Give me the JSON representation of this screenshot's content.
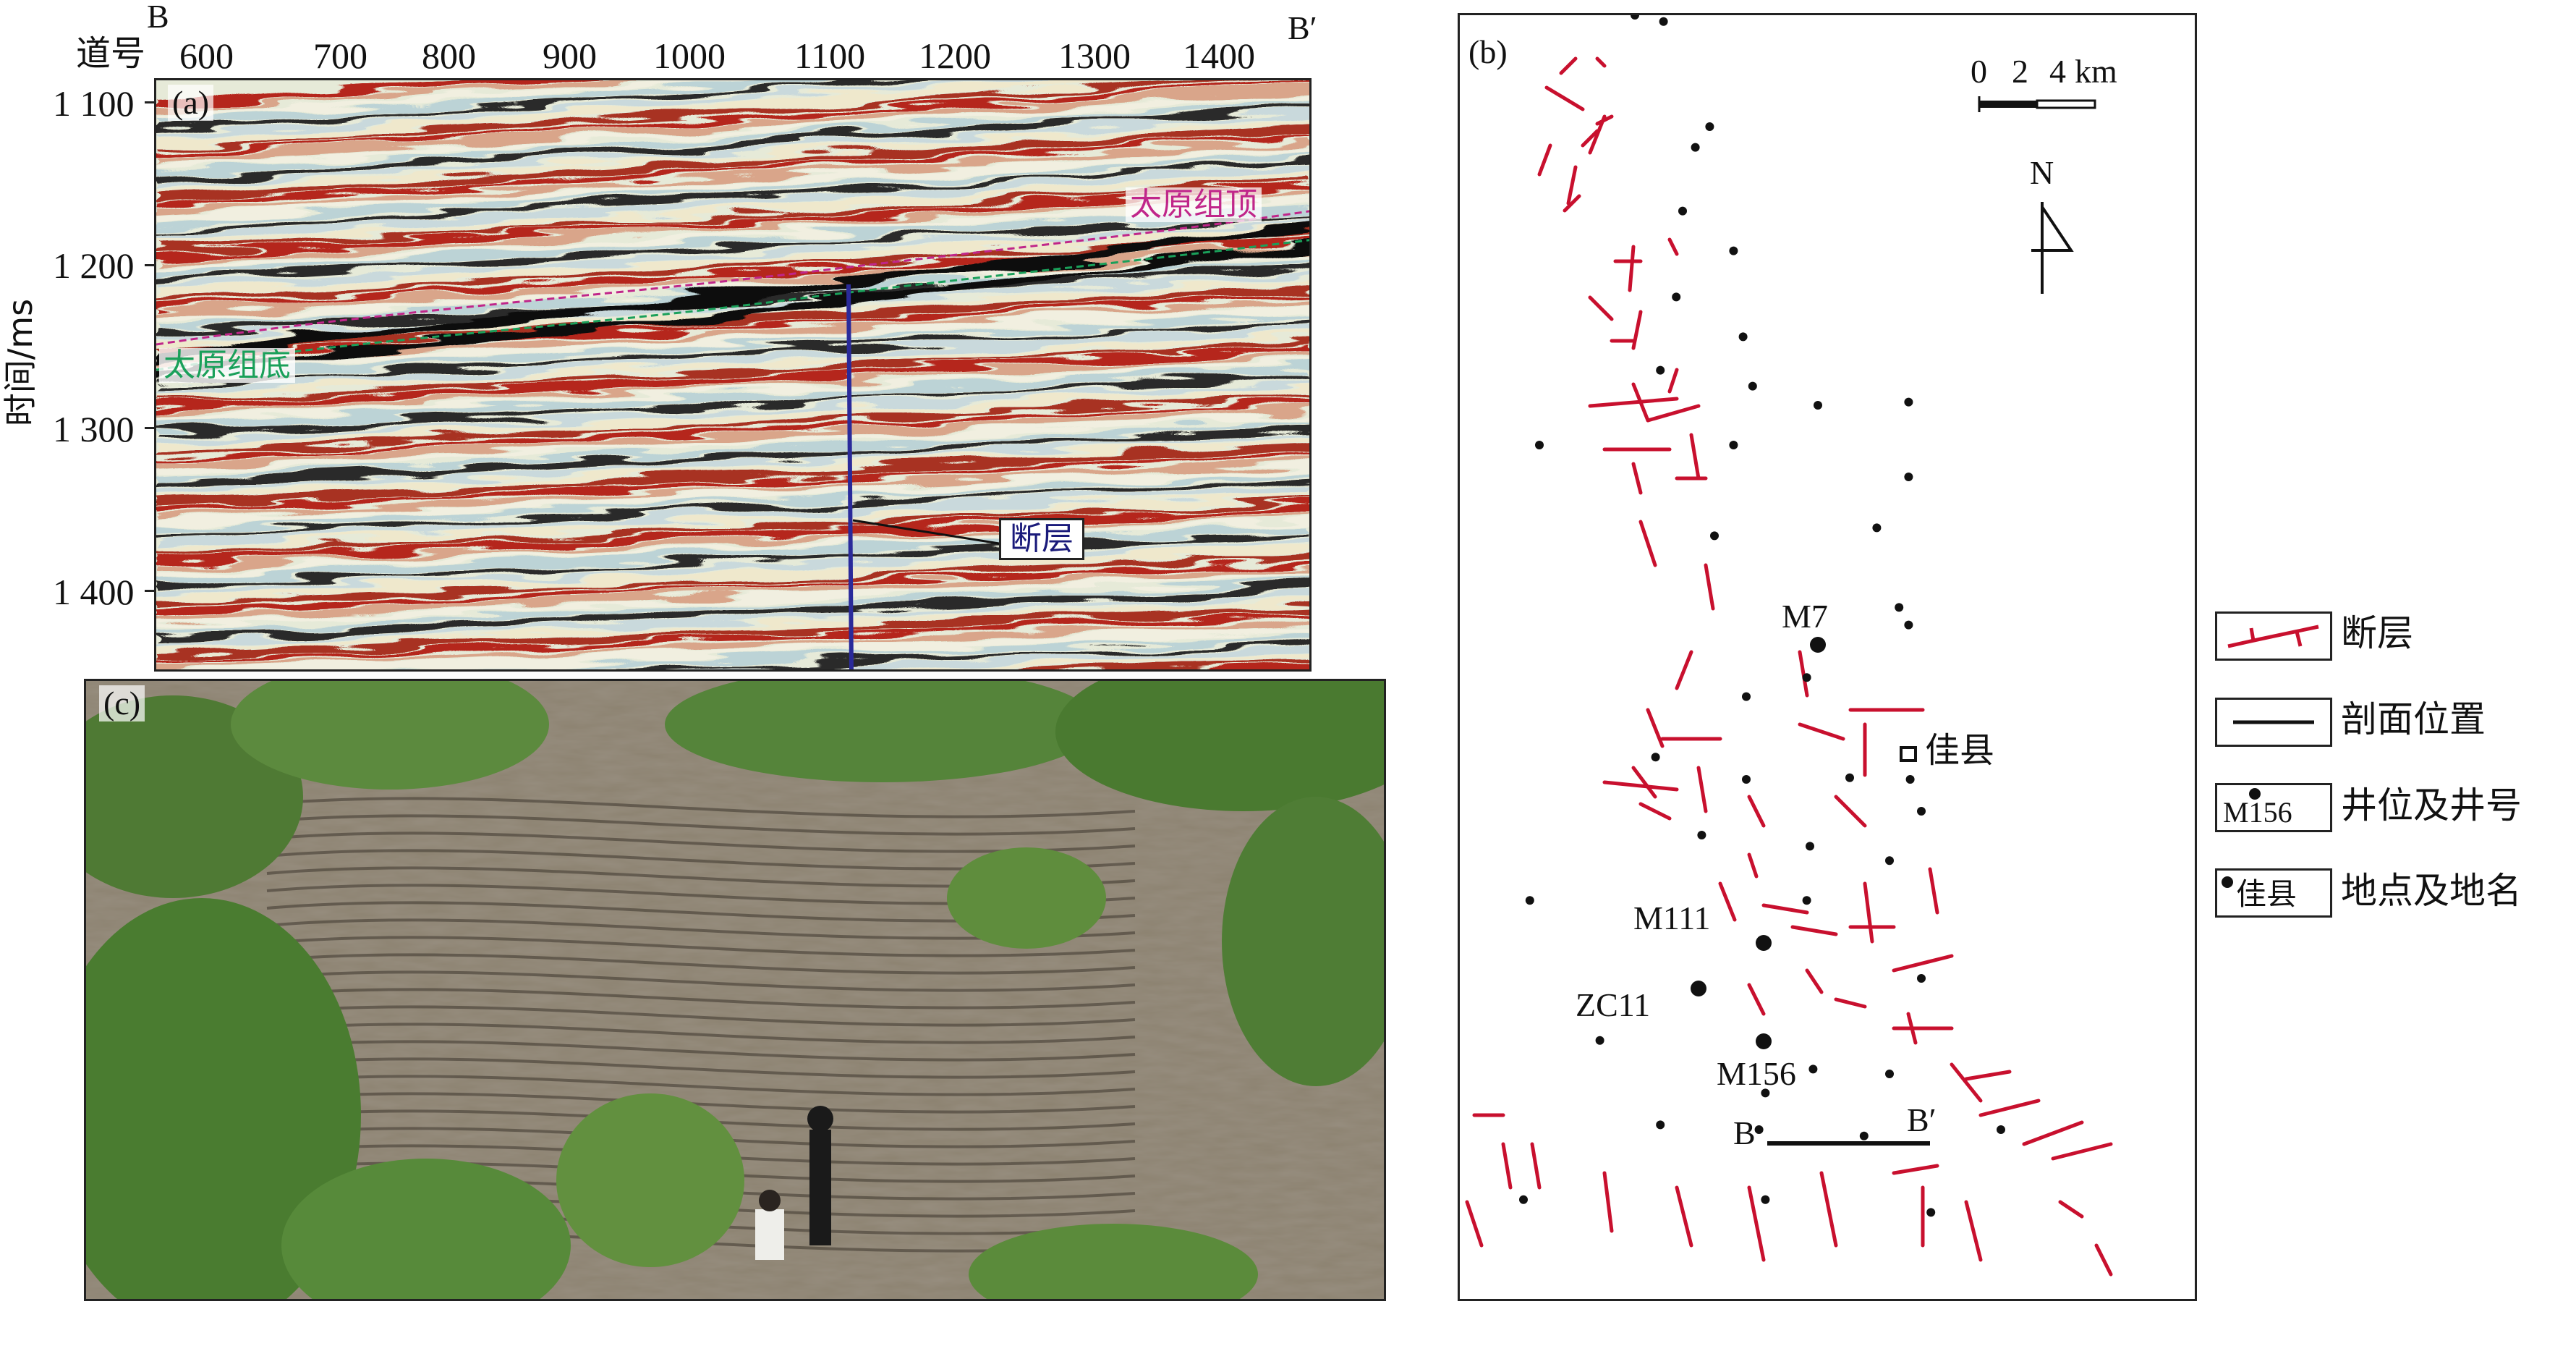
{
  "panel_a": {
    "label": "(a)",
    "section_start": "B",
    "section_end": "B′",
    "trace_axis_label": "道号",
    "trace_ticks": [
      "600",
      "700",
      "800",
      "900",
      "1000",
      "1100",
      "1200",
      "1300",
      "1400"
    ],
    "time_axis_label": "时间/ms",
    "time_ticks": [
      "1 100",
      "1 200",
      "1 300",
      "1 400"
    ],
    "annotations": {
      "taiyuan_top": "太原组顶",
      "taiyuan_base": "太原组底",
      "fault": "断层"
    },
    "colors": {
      "top_horizon": "#c0268a",
      "base_horizon": "#1aa05a",
      "fault_line": "#2a2a9a",
      "fault_label": "#1a1a7a"
    }
  },
  "panel_b": {
    "label": "(b)",
    "scale_bar": {
      "ticks": [
        "0",
        "2",
        "4"
      ],
      "unit": "km"
    },
    "north": "N",
    "wells": [
      "M7",
      "M111",
      "ZC11",
      "M156"
    ],
    "town": "佳县",
    "section_start": "B",
    "section_end": "B′",
    "colors": {
      "fault": "#c8102e",
      "section_line": "#111111"
    }
  },
  "panel_c": {
    "label": "(c)"
  },
  "legend": {
    "items": [
      {
        "icon": "fault-symbol-icon",
        "label": "断层"
      },
      {
        "icon": "section-line-icon",
        "label": "剖面位置"
      },
      {
        "icon": "well-symbol-icon",
        "sample": "M156",
        "label": "井位及井号"
      },
      {
        "icon": "town-symbol-icon",
        "sample": "佳县",
        "label": "地点及地名"
      }
    ]
  }
}
